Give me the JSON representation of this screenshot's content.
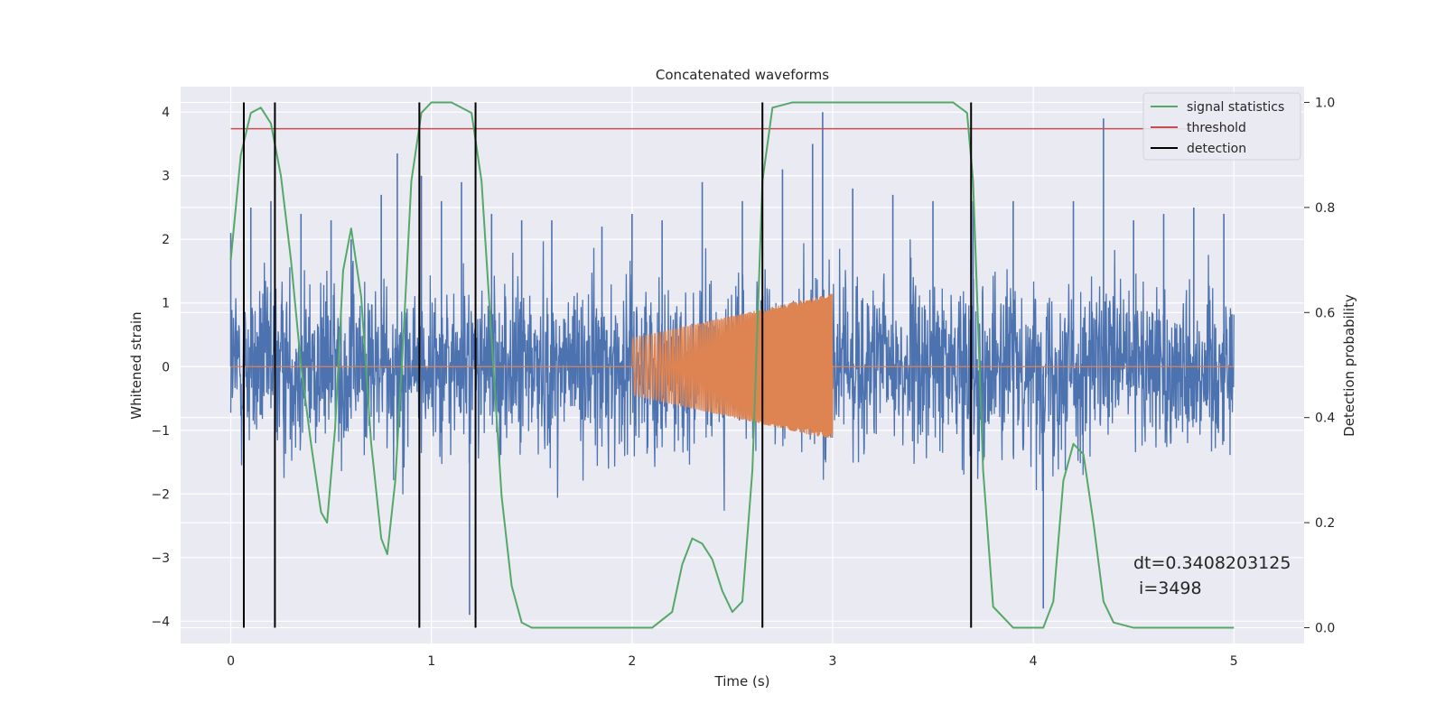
{
  "chart_data": {
    "type": "line",
    "title": "Concatenated waveforms",
    "xlabel": "Time (s)",
    "ylabel": "Whitened strain",
    "y2label": "Detection probability",
    "xlim": [
      -0.25,
      5.35
    ],
    "ylim": [
      -4.35,
      4.4
    ],
    "y2lim": [
      -0.03,
      1.03
    ],
    "x_ticks": [
      0,
      1,
      2,
      3,
      4,
      5
    ],
    "y_ticks": [
      -4,
      -3,
      -2,
      -1,
      0,
      1,
      2,
      3,
      4
    ],
    "y2_ticks": [
      0.0,
      0.2,
      0.4,
      0.6,
      0.8,
      1.0
    ],
    "x_tick_labels": [
      "0",
      "1",
      "2",
      "3",
      "4",
      "5"
    ],
    "y_tick_labels": [
      "−4",
      "−3",
      "−2",
      "−1",
      "0",
      "1",
      "2",
      "3",
      "4"
    ],
    "y2_tick_labels": [
      "0.0",
      "0.2",
      "0.4",
      "0.6",
      "0.8",
      "1.0"
    ],
    "grid": true,
    "legend_position": "top-right",
    "colors": {
      "background": "#eaeaf2",
      "strain": "#4c72b0",
      "injection": "#dd8452",
      "signal_statistics": "#55a868",
      "threshold": "#c44e52",
      "detection": "#000000",
      "grid": "#ffffff"
    },
    "series": [
      {
        "name": "signal statistics",
        "axis": "right",
        "x": [
          0,
          0.05,
          0.1,
          0.15,
          0.2,
          0.25,
          0.3,
          0.35,
          0.4,
          0.45,
          0.48,
          0.52,
          0.56,
          0.6,
          0.65,
          0.7,
          0.75,
          0.78,
          0.82,
          0.86,
          0.9,
          0.95,
          1.0,
          1.1,
          1.2,
          1.25,
          1.3,
          1.35,
          1.4,
          1.45,
          1.5,
          1.7,
          1.9,
          2.1,
          2.2,
          2.25,
          2.3,
          2.35,
          2.4,
          2.45,
          2.5,
          2.55,
          2.6,
          2.65,
          2.7,
          2.8,
          3.0,
          3.2,
          3.4,
          3.6,
          3.67,
          3.7,
          3.75,
          3.8,
          3.9,
          4.0,
          4.05,
          4.1,
          4.15,
          4.2,
          4.25,
          4.3,
          4.35,
          4.4,
          4.5,
          4.8,
          5.0
        ],
        "y": [
          0.7,
          0.9,
          0.98,
          0.99,
          0.96,
          0.86,
          0.7,
          0.5,
          0.35,
          0.22,
          0.2,
          0.38,
          0.68,
          0.76,
          0.63,
          0.35,
          0.17,
          0.14,
          0.28,
          0.55,
          0.85,
          0.98,
          1.0,
          1.0,
          0.98,
          0.85,
          0.55,
          0.25,
          0.08,
          0.01,
          0.0,
          0.0,
          0.0,
          0.0,
          0.03,
          0.12,
          0.17,
          0.16,
          0.13,
          0.07,
          0.03,
          0.05,
          0.3,
          0.85,
          0.99,
          1.0,
          1.0,
          1.0,
          1.0,
          1.0,
          0.98,
          0.85,
          0.3,
          0.04,
          0.0,
          0.0,
          0.0,
          0.05,
          0.28,
          0.35,
          0.33,
          0.2,
          0.05,
          0.01,
          0.0,
          0.0,
          0.0
        ]
      },
      {
        "name": "threshold",
        "axis": "right",
        "x": [
          0,
          5.0
        ],
        "y": [
          0.95,
          0.95
        ]
      },
      {
        "name": "detection",
        "axis": "right",
        "vlines": [
          0.065,
          0.22,
          0.94,
          1.22,
          2.65,
          3.69
        ],
        "ymin": 0.0,
        "ymax": 1.0
      },
      {
        "name": "",
        "axis": "left",
        "kind": "whitened strain noise",
        "x_range": [
          0,
          5.0
        ],
        "approx_peak_abs": 4.0,
        "approx_x": [
          0.0,
          0.1,
          0.2,
          0.35,
          0.5,
          0.6,
          0.75,
          0.83,
          0.95,
          1.05,
          1.15,
          1.19,
          1.3,
          1.45,
          1.6,
          1.85,
          2.0,
          2.15,
          2.35,
          2.55,
          2.75,
          2.9,
          2.95,
          3.1,
          3.3,
          3.5,
          3.7,
          3.9,
          4.05,
          4.2,
          4.35,
          4.5,
          4.65,
          4.8,
          4.95
        ],
        "approx_peaks": [
          2.1,
          2.5,
          2.6,
          2.4,
          2.3,
          2.0,
          2.7,
          3.35,
          3.0,
          2.6,
          2.9,
          -3.9,
          2.4,
          2.3,
          2.3,
          2.2,
          2.4,
          2.3,
          2.9,
          2.6,
          3.1,
          3.5,
          4.0,
          2.8,
          2.7,
          2.6,
          2.6,
          2.6,
          -3.8,
          2.6,
          3.9,
          2.3,
          2.4,
          2.5,
          2.4
        ]
      },
      {
        "name": "",
        "axis": "left",
        "kind": "injected chirp",
        "x_range": [
          2.0,
          3.0
        ],
        "envelope_start": 0.45,
        "envelope_end": 1.15,
        "baseline": 0.0
      }
    ],
    "legend": [
      "signal statistics",
      "threshold",
      "detection"
    ],
    "annotation": "dt=0.3408203125\n i=3498"
  }
}
